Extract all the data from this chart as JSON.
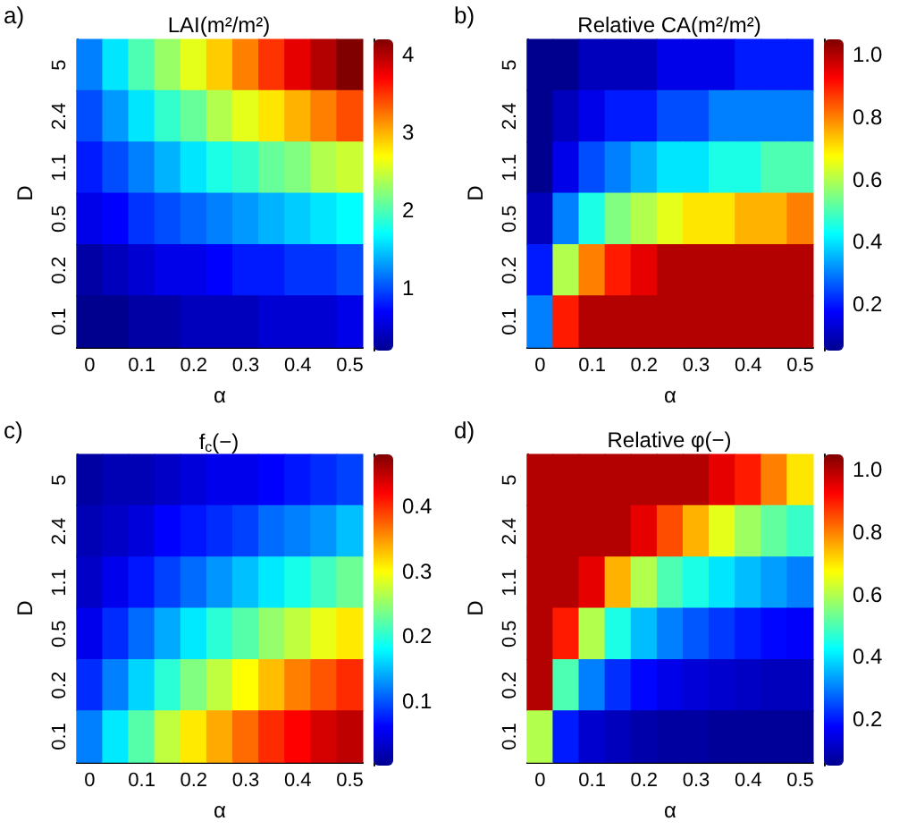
{
  "chart_data": [
    {
      "type": "heatmap",
      "title": "LAI(m²/m²)",
      "annotations": [
        "a)"
      ],
      "xlabel": "α",
      "ylabel": "D",
      "categories": [
        "0",
        null,
        "0.1",
        null,
        "0.2",
        null,
        "0.3",
        null,
        "0.4",
        null,
        "0.5"
      ],
      "y_categories": [
        "5",
        "2.4",
        "1.1",
        "0.5",
        "0.2",
        "0.1"
      ],
      "cells": [
        [
          1.2,
          1.6,
          2.0,
          2.3,
          2.6,
          2.9,
          3.2,
          3.5,
          3.8,
          4.0,
          4.2
        ],
        [
          1.0,
          1.3,
          1.6,
          1.9,
          2.1,
          2.4,
          2.6,
          2.8,
          3.0,
          3.2,
          3.4
        ],
        [
          0.8,
          1.0,
          1.2,
          1.4,
          1.6,
          1.8,
          1.9,
          2.1,
          2.2,
          2.4,
          2.5
        ],
        [
          0.6,
          0.7,
          0.9,
          1.0,
          1.1,
          1.2,
          1.3,
          1.4,
          1.5,
          1.6,
          1.7
        ],
        [
          0.3,
          0.4,
          0.5,
          0.6,
          0.6,
          0.7,
          0.8,
          0.8,
          0.9,
          0.9,
          1.0
        ],
        [
          0.2,
          0.2,
          0.3,
          0.3,
          0.4,
          0.4,
          0.4,
          0.5,
          0.5,
          0.5,
          0.6
        ]
      ],
      "clim": [
        0.2,
        4.2
      ],
      "cticks": [
        1,
        2,
        3,
        4
      ]
    },
    {
      "type": "heatmap",
      "title": "Relative CA(m²/m²)",
      "annotations": [
        "b)"
      ],
      "xlabel": "α",
      "ylabel": "D",
      "categories": [
        "0",
        null,
        "0.1",
        null,
        "0.2",
        null,
        "0.3",
        null,
        "0.4",
        null,
        "0.5"
      ],
      "y_categories": [
        "5",
        "2.4",
        "1.1",
        "0.5",
        "0.2",
        "0.1"
      ],
      "cells": [
        [
          0.05,
          0.05,
          0.1,
          0.1,
          0.1,
          0.15,
          0.15,
          0.15,
          0.2,
          0.2,
          0.2
        ],
        [
          0.05,
          0.1,
          0.15,
          0.2,
          0.2,
          0.25,
          0.25,
          0.3,
          0.3,
          0.3,
          0.3
        ],
        [
          0.05,
          0.15,
          0.25,
          0.3,
          0.35,
          0.4,
          0.4,
          0.45,
          0.45,
          0.5,
          0.5
        ],
        [
          0.1,
          0.3,
          0.45,
          0.55,
          0.6,
          0.65,
          0.7,
          0.7,
          0.75,
          0.75,
          0.8
        ],
        [
          0.2,
          0.6,
          0.8,
          0.9,
          0.95,
          1,
          1,
          1,
          1,
          1,
          1
        ],
        [
          0.3,
          0.9,
          1,
          1,
          1,
          1,
          1,
          1,
          1,
          1,
          1
        ]
      ],
      "clim": [
        0.05,
        1.05
      ],
      "cticks": [
        0.2,
        0.4,
        0.6,
        0.8,
        {
          "value": 1,
          "label": "1.0"
        }
      ]
    },
    {
      "type": "heatmap",
      "title": "f$_{c}$(−)",
      "annotations": [
        "c)"
      ],
      "xlabel": "α",
      "ylabel": "D",
      "categories": [
        "0",
        null,
        "0.1",
        null,
        "0.2",
        null,
        "0.3",
        null,
        "0.4",
        null,
        "0.5"
      ],
      "y_categories": [
        "5",
        "2.4",
        "1.1",
        "0.5",
        "0.2",
        "0.1"
      ],
      "cells": [
        [
          0.01,
          0.02,
          0.02,
          0.03,
          0.04,
          0.05,
          0.05,
          0.06,
          0.07,
          0.08,
          0.09
        ],
        [
          0.02,
          0.03,
          0.04,
          0.06,
          0.07,
          0.08,
          0.09,
          0.11,
          0.12,
          0.13,
          0.15
        ],
        [
          0.03,
          0.05,
          0.07,
          0.09,
          0.11,
          0.13,
          0.15,
          0.17,
          0.19,
          0.21,
          0.23
        ],
        [
          0.05,
          0.08,
          0.11,
          0.14,
          0.17,
          0.2,
          0.22,
          0.25,
          0.27,
          0.29,
          0.31
        ],
        [
          0.08,
          0.12,
          0.16,
          0.2,
          0.24,
          0.27,
          0.3,
          0.33,
          0.36,
          0.38,
          0.4
        ],
        [
          0.12,
          0.17,
          0.22,
          0.27,
          0.31,
          0.34,
          0.37,
          0.4,
          0.42,
          0.44,
          0.45
        ]
      ],
      "clim": [
        0,
        0.48
      ],
      "cticks": [
        0.1,
        0.2,
        0.3,
        0.4
      ]
    },
    {
      "type": "heatmap",
      "title": "Relative φ(−)",
      "annotations": [
        "d)"
      ],
      "xlabel": "α",
      "ylabel": "D",
      "categories": [
        "0",
        null,
        "0.1",
        null,
        "0.2",
        null,
        "0.3",
        null,
        "0.4",
        null,
        "0.5"
      ],
      "y_categories": [
        "5",
        "2.4",
        "1.1",
        "0.5",
        "0.2",
        "0.1"
      ],
      "cells": [
        [
          1,
          1,
          1,
          1,
          1,
          1,
          1,
          0.95,
          0.9,
          0.8,
          0.7
        ],
        [
          1,
          1,
          1,
          1,
          0.95,
          0.85,
          0.75,
          0.65,
          0.58,
          0.52,
          0.48
        ],
        [
          1,
          1,
          0.95,
          0.75,
          0.6,
          0.5,
          0.45,
          0.4,
          0.36,
          0.33,
          0.3
        ],
        [
          1,
          0.9,
          0.6,
          0.45,
          0.36,
          0.3,
          0.26,
          0.23,
          0.2,
          0.18,
          0.17
        ],
        [
          1,
          0.5,
          0.3,
          0.22,
          0.18,
          0.15,
          0.13,
          0.12,
          0.11,
          0.1,
          0.1
        ],
        [
          0.6,
          0.2,
          0.12,
          0.1,
          0.08,
          0.07,
          0.07,
          0.06,
          0.06,
          0.06,
          0.06
        ]
      ],
      "clim": [
        0.05,
        1.05
      ],
      "cticks": [
        0.2,
        0.4,
        0.6,
        0.8,
        {
          "value": 1,
          "label": "1.0"
        }
      ]
    }
  ]
}
